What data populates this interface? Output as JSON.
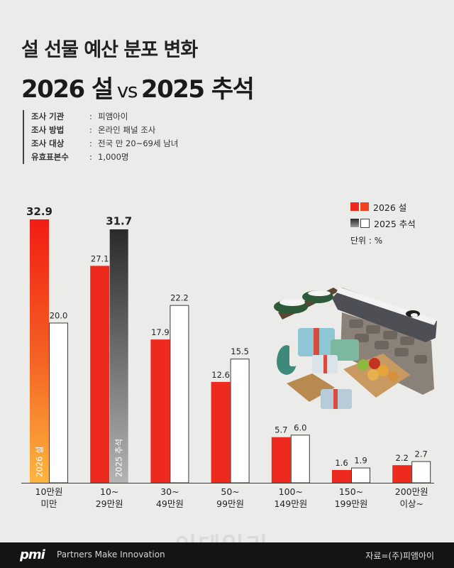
{
  "header": {
    "title_line1": "설 선물 예산 분포 변화",
    "title_left": "2026 설",
    "title_vs": "vs",
    "title_right": "2025 추석"
  },
  "survey": [
    {
      "key": "조사 기관",
      "value": "피앰아이"
    },
    {
      "key": "조사 방법",
      "value": "온라인 패널 조사"
    },
    {
      "key": "조사 대상",
      "value": "전국 만 20~69세 남녀"
    },
    {
      "key": "유효표본수",
      "value": "1,000명"
    }
  ],
  "legend": {
    "series1": "2026 설",
    "series2": "2025 추석",
    "unit": "단위 : %"
  },
  "colors": {
    "s1_base": "#ee2a1e",
    "s1_highlight_top": "#f21c14",
    "s1_highlight_bottom": "#fcb640",
    "s2_base": "#ffffff",
    "s2_highlight_top": "#2a2a2a",
    "s2_highlight_bottom": "#b4b4b4",
    "background": "#ebebe9"
  },
  "chart_data": {
    "type": "bar",
    "categories": [
      [
        "10만원",
        "미만"
      ],
      [
        "10~",
        "29만원"
      ],
      [
        "30~",
        "49만원"
      ],
      [
        "50~",
        "99만원"
      ],
      [
        "100~",
        "149만원"
      ],
      [
        "150~",
        "199만원"
      ],
      [
        "200만원",
        "이상~"
      ]
    ],
    "series": [
      {
        "name": "2026 설",
        "values": [
          32.9,
          27.1,
          17.9,
          12.6,
          5.7,
          1.6,
          2.2
        ]
      },
      {
        "name": "2025 추석",
        "values": [
          20.0,
          31.7,
          22.2,
          15.5,
          6.0,
          1.9,
          2.7
        ]
      }
    ],
    "value_labels": [
      [
        "32.9",
        "27.1",
        "17.9",
        "12.6",
        "5.7",
        "1.6",
        "2.2"
      ],
      [
        "20.0",
        "31.7",
        "22.2",
        "15.5",
        "6.0",
        "1.9",
        "2.7"
      ]
    ],
    "highlight": {
      "series1_index": 0,
      "series2_index": 1
    },
    "inbar_labels": {
      "series1": "2026 설",
      "series2": "2025 추석"
    },
    "ylim": [
      0,
      35
    ],
    "grid": false,
    "legend_position": "top-right"
  },
  "footer": {
    "logo_text": "pmi",
    "tagline": "Partners Make Innovation",
    "source": "자료=(주)피앰아이"
  },
  "watermark": "이데일리",
  "illustration_icon": "seollal-gift-boxes-and-hanok-wall-illustration"
}
